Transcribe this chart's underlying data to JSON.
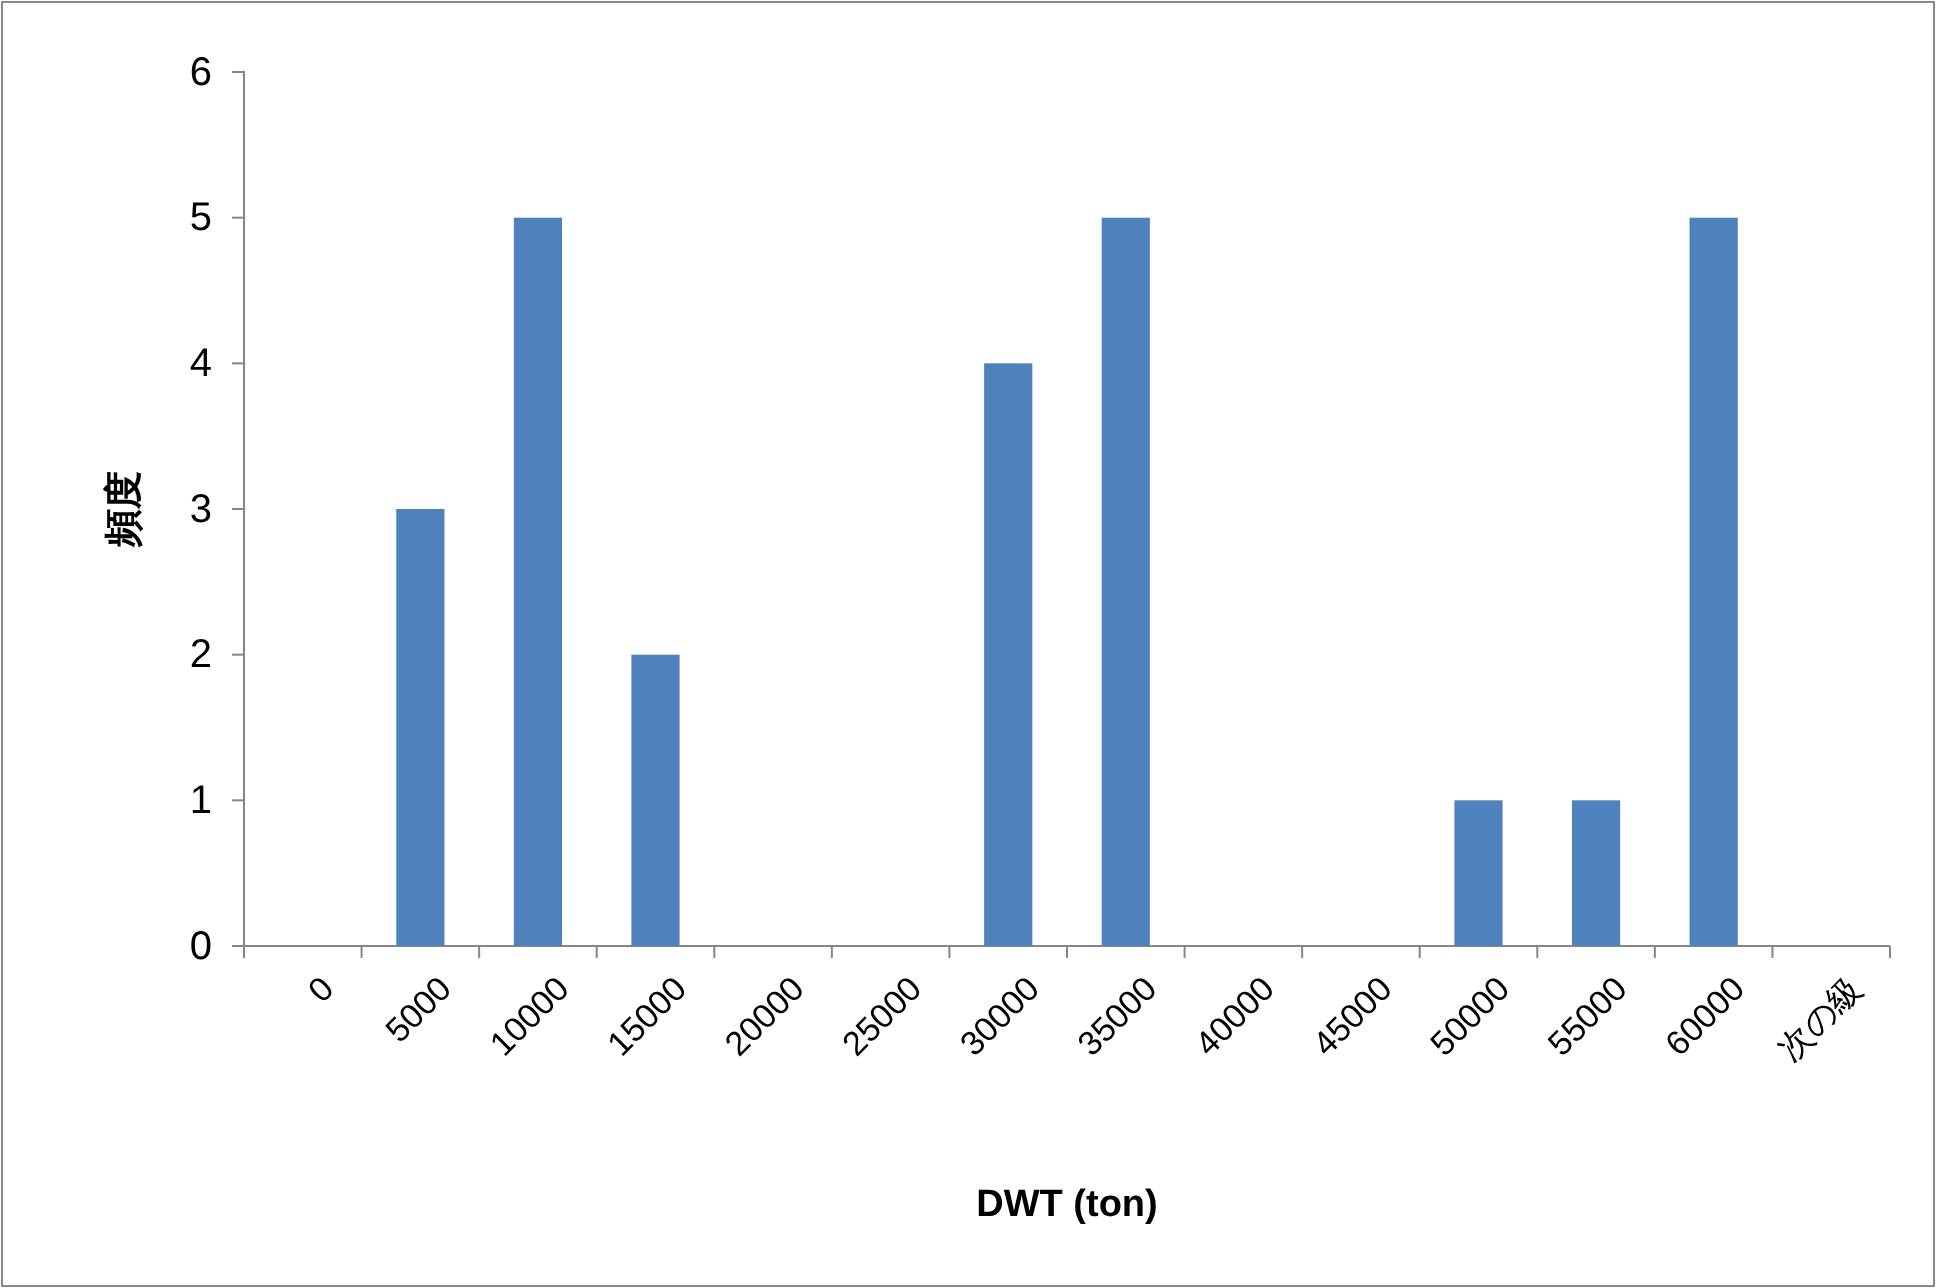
{
  "chart_data": {
    "type": "bar",
    "xlabel": "DWT (ton)",
    "ylabel": "頻度",
    "categories": [
      "0",
      "5000",
      "10000",
      "15000",
      "20000",
      "25000",
      "30000",
      "35000",
      "40000",
      "45000",
      "50000",
      "55000",
      "60000",
      "次の級"
    ],
    "series": [
      {
        "color": "#4f81bd",
        "values": [
          0,
          3,
          5,
          2,
          0,
          0,
          4,
          5,
          0,
          0,
          1,
          1,
          5,
          0
        ]
      }
    ],
    "ylim": [
      0,
      6
    ],
    "yticks": [
      0,
      1,
      2,
      3,
      4,
      5,
      6
    ],
    "grid": false
  }
}
